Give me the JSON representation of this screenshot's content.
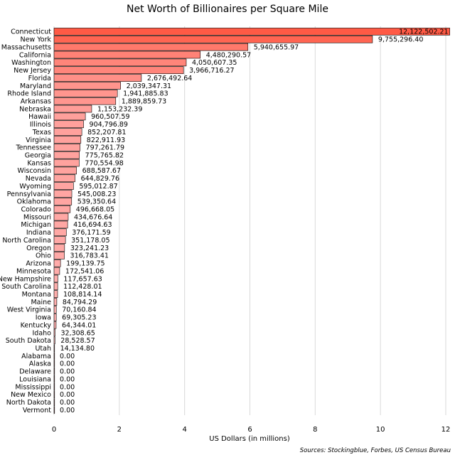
{
  "chart_data": {
    "type": "bar",
    "orientation": "horizontal",
    "title": "Net Worth of Billionaires per Square Mile",
    "xlabel": "US Dollars (in millions)",
    "ylabel": "",
    "xlim": [
      0,
      12
    ],
    "xticks": [
      0,
      2,
      4,
      6,
      8,
      10,
      12
    ],
    "grid": true,
    "source": "Sources: Stockingblue, Forbes, US Census Bureau",
    "colors": {
      "max": "#ff5a45",
      "min": "#ffb3b3"
    },
    "categories": [
      "Connecticut",
      "New York",
      "Massachusetts",
      "California",
      "Washington",
      "New Jersey",
      "Florida",
      "Maryland",
      "Rhode Island",
      "Arkansas",
      "Nebraska",
      "Hawaii",
      "Illinois",
      "Texas",
      "Virginia",
      "Tennessee",
      "Georgia",
      "Kansas",
      "Wisconsin",
      "Nevada",
      "Wyoming",
      "Pennsylvania",
      "Oklahoma",
      "Colorado",
      "Missouri",
      "Michigan",
      "Indiana",
      "North Carolina",
      "Oregon",
      "Ohio",
      "Arizona",
      "Minnesota",
      "New Hampshire",
      "South Carolina",
      "Montana",
      "Maine",
      "West Virginia",
      "Iowa",
      "Kentucky",
      "Idaho",
      "South Dakota",
      "Utah",
      "Alabama",
      "Alaska",
      "Delaware",
      "Louisiana",
      "Mississippi",
      "New Mexico",
      "North Dakota",
      "Vermont"
    ],
    "values": [
      12122502.21,
      9755296.4,
      5940655.97,
      4480290.57,
      4050607.35,
      3966716.27,
      2676492.64,
      2039347.31,
      1941885.83,
      1889859.73,
      1153232.39,
      960507.59,
      904796.89,
      852207.81,
      822911.93,
      797261.79,
      775765.82,
      770554.98,
      688587.67,
      644829.76,
      595012.87,
      545008.23,
      539350.64,
      496668.05,
      434676.64,
      416694.63,
      376171.59,
      351178.05,
      323241.23,
      316783.41,
      199139.75,
      172541.06,
      117657.63,
      112428.01,
      108814.14,
      84794.29,
      70160.84,
      69305.23,
      64344.01,
      32308.65,
      28528.57,
      14134.8,
      0,
      0,
      0,
      0,
      0,
      0,
      0,
      0
    ],
    "value_labels": [
      "12,122,502.21",
      "9,755,296.40",
      "5,940,655.97",
      "4,480,290.57",
      "4,050,607.35",
      "3,966,716.27",
      "2,676,492.64",
      "2,039,347.31",
      "1,941,885.83",
      "1,889,859.73",
      "1,153,232.39",
      "960,507.59",
      "904,796.89",
      "852,207.81",
      "822,911.93",
      "797,261.79",
      "775,765.82",
      "770,554.98",
      "688,587.67",
      "644,829.76",
      "595,012.87",
      "545,008.23",
      "539,350.64",
      "496,668.05",
      "434,676.64",
      "416,694.63",
      "376,171.59",
      "351,178.05",
      "323,241.23",
      "316,783.41",
      "199,139.75",
      "172,541.06",
      "117,657.63",
      "112,428.01",
      "108,814.14",
      "84,794.29",
      "70,160.84",
      "69,305.23",
      "64,344.01",
      "32,308.65",
      "28,528.57",
      "14,134.80",
      "0.00",
      "0.00",
      "0.00",
      "0.00",
      "0.00",
      "0.00",
      "0.00",
      "0.00"
    ]
  }
}
